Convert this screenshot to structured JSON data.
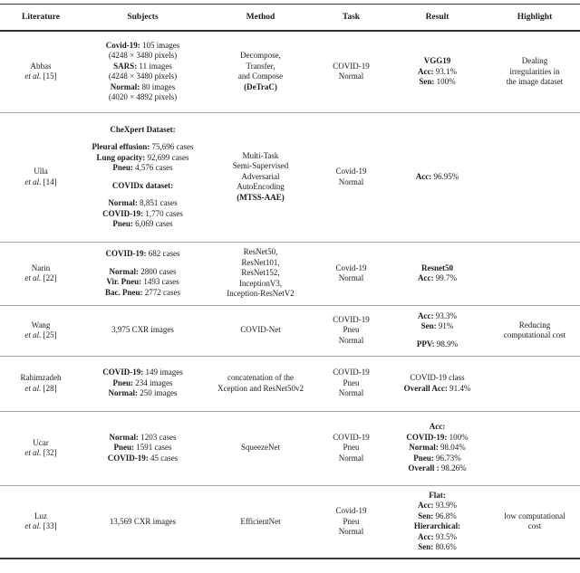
{
  "page": {
    "background": "#ffffff",
    "text_color": "#1b1b1b",
    "rule_dark": "#333333",
    "rule_light": "#a6a6a6"
  },
  "table": {
    "columns": [
      "Literature",
      "Subjects",
      "Method",
      "Task",
      "Result",
      "Highlight"
    ],
    "rows": [
      {
        "literature": [
          [
            {
              "t": "Abbas"
            }
          ],
          [
            {
              "t": "et al.",
              "i": true
            },
            {
              "t": " [15]"
            }
          ]
        ],
        "subjects": [
          [
            {
              "t": "Covid-19:",
              "b": true
            },
            {
              "t": " 105 images"
            }
          ],
          [
            {
              "t": "(4248 × 3480 pixels)"
            }
          ],
          [
            {
              "t": "SARS:",
              "b": true
            },
            {
              "t": " 11 images"
            }
          ],
          [
            {
              "t": "(4248 × 3480 pixels)"
            }
          ],
          [
            {
              "t": "Normal:",
              "b": true
            },
            {
              "t": " 80 images"
            }
          ],
          [
            {
              "t": "(4020 × 4892 pixels)"
            }
          ]
        ],
        "method": [
          [
            {
              "t": "Decompose,"
            }
          ],
          [
            {
              "t": "Transfer,"
            }
          ],
          [
            {
              "t": "and Compose"
            }
          ],
          [
            {
              "t": "(DeTraC)",
              "b": true
            }
          ]
        ],
        "task": [
          [
            {
              "t": "COVID-19"
            }
          ],
          [
            {
              "t": "Normal"
            }
          ]
        ],
        "result": [
          [
            {
              "t": "VGG19",
              "b": true
            }
          ],
          [
            {
              "t": "Acc:",
              "b": true
            },
            {
              "t": " 93.1%"
            }
          ],
          [
            {
              "t": "Sen:",
              "b": true
            },
            {
              "t": " 100%"
            }
          ]
        ],
        "highlight": [
          [
            {
              "t": "Dealing"
            }
          ],
          [
            {
              "t": "irregularities in"
            }
          ],
          [
            {
              "t": "the image dataset"
            }
          ]
        ]
      },
      {
        "literature": [
          [
            {
              "t": "Ulla"
            }
          ],
          [
            {
              "t": "et al.",
              "i": true
            },
            {
              "t": " [14]"
            }
          ]
        ],
        "subjects": [
          [
            {
              "t": "CheXpert Dataset:",
              "b": true
            }
          ],
          [],
          [
            {
              "t": "Pleural effusion:",
              "b": true
            },
            {
              "t": " 75,696 cases"
            }
          ],
          [
            {
              "t": "Lung opacity:",
              "b": true
            },
            {
              "t": " 92,699 cases"
            }
          ],
          [
            {
              "t": "Pneu:",
              "b": true
            },
            {
              "t": " 4,576 cases"
            }
          ],
          [],
          [
            {
              "t": "COVIDx dataset:",
              "b": true
            }
          ],
          [],
          [
            {
              "t": "Normal:",
              "b": true
            },
            {
              "t": " 8,851 cases"
            }
          ],
          [
            {
              "t": "COVID-19:",
              "b": true
            },
            {
              "t": " 1,770 cases"
            }
          ],
          [
            {
              "t": "Pneu:",
              "b": true
            },
            {
              "t": " 6,069 cases"
            }
          ]
        ],
        "method": [
          [
            {
              "t": "Multi-Task"
            }
          ],
          [
            {
              "t": "Semi-Supervised"
            }
          ],
          [
            {
              "t": "Adversarial"
            }
          ],
          [
            {
              "t": "AutoEncoding"
            }
          ],
          [
            {
              "t": "(MTSS-AAE)",
              "b": true
            }
          ]
        ],
        "task": [
          [
            {
              "t": "Covid-19"
            }
          ],
          [
            {
              "t": "Normal"
            }
          ]
        ],
        "result": [
          [
            {
              "t": "Acc:",
              "b": true
            },
            {
              "t": " 96.95%"
            }
          ]
        ],
        "highlight": []
      },
      {
        "literature": [
          [
            {
              "t": "Narin"
            }
          ],
          [
            {
              "t": "et al.",
              "i": true
            },
            {
              "t": " [22]"
            }
          ]
        ],
        "subjects": [
          [
            {
              "t": "COVID-19:",
              "b": true
            },
            {
              "t": " 682 cases"
            }
          ],
          [],
          [
            {
              "t": "Normal:",
              "b": true
            },
            {
              "t": " 2800 cases"
            }
          ],
          [
            {
              "t": "Vir. Pneu:",
              "b": true
            },
            {
              "t": " 1493 cases"
            }
          ],
          [
            {
              "t": "Bac. Pneu:",
              "b": true
            },
            {
              "t": " 2772 cases"
            }
          ]
        ],
        "method": [
          [
            {
              "t": "ResNet50,"
            }
          ],
          [
            {
              "t": "ResNet101,"
            }
          ],
          [
            {
              "t": "ResNet152,"
            }
          ],
          [
            {
              "t": "InceptionV3,"
            }
          ],
          [
            {
              "t": "Inception-ResNetV2"
            }
          ]
        ],
        "task": [
          [
            {
              "t": "Covid-19"
            }
          ],
          [
            {
              "t": "Normal"
            }
          ]
        ],
        "result": [
          [
            {
              "t": "Resnet50",
              "b": true
            }
          ],
          [
            {
              "t": "Acc:",
              "b": true
            },
            {
              "t": " 99.7%"
            }
          ]
        ],
        "highlight": []
      },
      {
        "literature": [
          [
            {
              "t": "Wang"
            }
          ],
          [
            {
              "t": "et al.",
              "i": true
            },
            {
              "t": " [25]"
            }
          ]
        ],
        "subjects": [
          [
            {
              "t": "3,975 CXR images"
            }
          ]
        ],
        "method": [
          [
            {
              "t": "COVID-Net"
            }
          ]
        ],
        "task": [
          [
            {
              "t": "COVID-19"
            }
          ],
          [
            {
              "t": "Pneu"
            }
          ],
          [
            {
              "t": "Normal"
            }
          ]
        ],
        "result": [
          [
            {
              "t": "Acc:",
              "b": true
            },
            {
              "t": " 93.3%"
            }
          ],
          [
            {
              "t": "Sen:",
              "b": true
            },
            {
              "t": " 91%"
            }
          ],
          [],
          [
            {
              "t": "PPV:",
              "b": true
            },
            {
              "t": " 98.9%"
            }
          ]
        ],
        "highlight": [
          [
            {
              "t": "Reducing"
            }
          ],
          [
            {
              "t": "computational cost"
            }
          ]
        ]
      },
      {
        "literature": [
          [
            {
              "t": "Rahimzadeh"
            }
          ],
          [
            {
              "t": "et al.",
              "i": true
            },
            {
              "t": " [28]"
            }
          ]
        ],
        "subjects": [
          [
            {
              "t": "COVID-19:",
              "b": true
            },
            {
              "t": " 149 images"
            }
          ],
          [
            {
              "t": "Pneu:",
              "b": true
            },
            {
              "t": " 234 images"
            }
          ],
          [
            {
              "t": "Normal:",
              "b": true
            },
            {
              "t": " 250 images"
            }
          ]
        ],
        "method": [
          [
            {
              "t": "concatenation of the"
            }
          ],
          [
            {
              "t": "Xception and ResNet50v2"
            }
          ]
        ],
        "task": [
          [
            {
              "t": "COVID-19"
            }
          ],
          [
            {
              "t": "Pneu"
            }
          ],
          [
            {
              "t": "Normal"
            }
          ]
        ],
        "result": [
          [
            {
              "t": "COVID-19 class"
            }
          ],
          [
            {
              "t": "Overall Acc:",
              "b": true
            },
            {
              "t": " 91.4%"
            }
          ]
        ],
        "highlight": []
      },
      {
        "literature": [
          [
            {
              "t": "Ucar"
            }
          ],
          [
            {
              "t": "et al.",
              "i": true
            },
            {
              "t": " [32]"
            }
          ]
        ],
        "subjects": [
          [
            {
              "t": "Normal:",
              "b": true
            },
            {
              "t": " 1203 cases"
            }
          ],
          [
            {
              "t": "Pneu:",
              "b": true
            },
            {
              "t": " 1591 cases"
            }
          ],
          [
            {
              "t": "COVID-19:",
              "b": true
            },
            {
              "t": " 45 cases"
            }
          ]
        ],
        "method": [
          [
            {
              "t": "SqueezeNet"
            }
          ]
        ],
        "task": [
          [
            {
              "t": "COVID-19"
            }
          ],
          [
            {
              "t": "Pneu"
            }
          ],
          [
            {
              "t": "Normal"
            }
          ]
        ],
        "result": [
          [
            {
              "t": "Acc:",
              "b": true
            }
          ],
          [
            {
              "t": "COVID-19:",
              "b": true
            },
            {
              "t": " 100%"
            }
          ],
          [
            {
              "t": "Normal:",
              "b": true
            },
            {
              "t": " 98.04%"
            }
          ],
          [
            {
              "t": "Pneu:",
              "b": true
            },
            {
              "t": " 96.73%"
            }
          ],
          [
            {
              "t": "Overall :",
              "b": true
            },
            {
              "t": " 98.26%"
            }
          ]
        ],
        "highlight": []
      },
      {
        "literature": [
          [
            {
              "t": "Luz"
            }
          ],
          [
            {
              "t": "et al.",
              "i": true
            },
            {
              "t": " [33]"
            }
          ]
        ],
        "subjects": [
          [
            {
              "t": "13,569 CXR images"
            }
          ]
        ],
        "method": [
          [
            {
              "t": "EfficientNet"
            }
          ]
        ],
        "task": [
          [
            {
              "t": "Covid-19"
            }
          ],
          [
            {
              "t": "Pneu"
            }
          ],
          [
            {
              "t": "Normal"
            }
          ]
        ],
        "result": [
          [
            {
              "t": "Flat:",
              "b": true
            }
          ],
          [
            {
              "t": "Acc:",
              "b": true
            },
            {
              "t": " 93.9%"
            }
          ],
          [
            {
              "t": "Sen:",
              "b": true
            },
            {
              "t": " 96.8%"
            }
          ],
          [
            {
              "t": "Hierarchical:",
              "b": true
            }
          ],
          [
            {
              "t": "Acc:",
              "b": true
            },
            {
              "t": " 93.5%"
            }
          ],
          [
            {
              "t": "Sen:",
              "b": true
            },
            {
              "t": " 80.6%"
            }
          ]
        ],
        "highlight": [
          [
            {
              "t": "low computational"
            }
          ],
          [
            {
              "t": "cost"
            }
          ]
        ]
      }
    ]
  }
}
